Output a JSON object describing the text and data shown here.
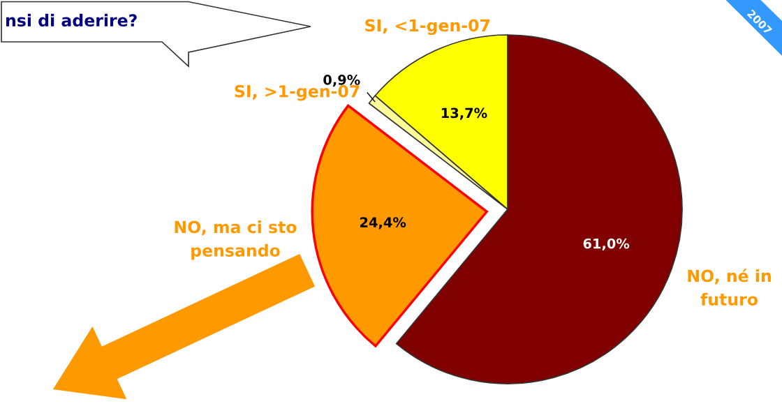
{
  "chart_data": {
    "type": "pie",
    "title": "nsi di aderire?",
    "categories": [
      "NO, né in\nfuturo",
      "NO, ma ci sto\npensando",
      "SI, >1-gen-07",
      "SI, <1-gen-07"
    ],
    "values": [
      61.0,
      24.4,
      0.9,
      13.7
    ],
    "value_labels": [
      "61,0%",
      "24,4%",
      "0,9%",
      "13,7%"
    ],
    "colors": [
      "#800000",
      "#ff9900",
      "#ffff99",
      "#ffff00"
    ],
    "annotations": [
      "2007"
    ]
  }
}
